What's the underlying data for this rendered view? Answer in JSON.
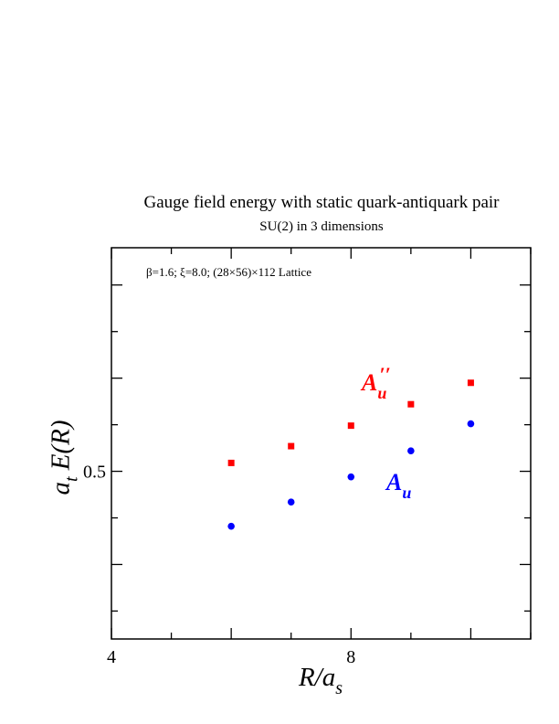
{
  "chart_data": {
    "type": "scatter",
    "title": "Gauge field energy with static quark-antiquark pair",
    "subtitle": "SU(2) in 3 dimensions",
    "annotation": "β=1.6; ξ=8.0; (28×56)×112 Lattice",
    "xlabel": "R/a_s",
    "ylabel": "a_t E(R)",
    "xlim": [
      4,
      11
    ],
    "ylim": [
      0.41,
      0.62
    ],
    "xticks_labeled": [
      "4",
      "8"
    ],
    "yticks_labeled": [
      "0.5"
    ],
    "grid": false,
    "series": [
      {
        "name": "A_u''",
        "color": "#ff0000",
        "marker": "square",
        "x": [
          6,
          7,
          8,
          9,
          10
        ],
        "y": [
          0.5045,
          0.5135,
          0.5245,
          0.536,
          0.5475
        ]
      },
      {
        "name": "A_u",
        "color": "#0000ff",
        "marker": "circle",
        "x": [
          6,
          7,
          8,
          9,
          10
        ],
        "y": [
          0.4705,
          0.4835,
          0.497,
          0.511,
          0.5255
        ]
      }
    ]
  }
}
